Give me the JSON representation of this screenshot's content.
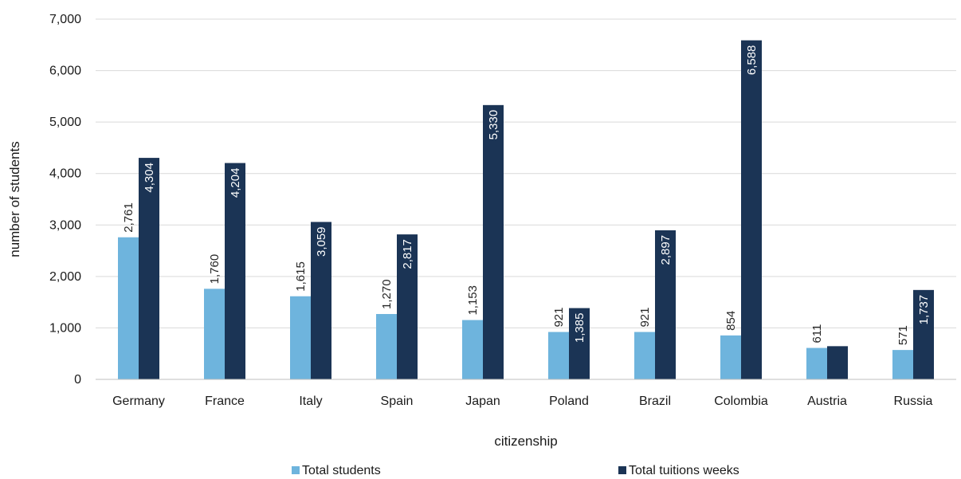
{
  "chart_data": {
    "type": "bar",
    "title": "",
    "xlabel": "citizenship",
    "ylabel": "number of students",
    "categories": [
      "Germany",
      "France",
      "Italy",
      "Spain",
      "Japan",
      "Poland",
      "Brazil",
      "Colombia",
      "Austria",
      "Russia"
    ],
    "series": [
      {
        "name": "Total students",
        "color": "#6eb4dd",
        "values": [
          2761,
          1760,
          1615,
          1270,
          1153,
          921,
          921,
          854,
          611,
          571
        ],
        "labels": [
          "2,761",
          "1,760",
          "1,615",
          "1,270",
          "1,153",
          "921",
          "921",
          "854",
          "611",
          "571"
        ]
      },
      {
        "name": "Total tuitions weeks",
        "color": "#1b3455",
        "values": [
          4304,
          4204,
          3059,
          2817,
          5330,
          1385,
          2897,
          6588,
          645,
          1737
        ],
        "labels": [
          "4,304",
          "4,204",
          "3,059",
          "2,817",
          "5,330",
          "1,385",
          "2,897",
          "6,588",
          "",
          "1,737"
        ]
      }
    ],
    "ylim": [
      0,
      7000
    ],
    "yticks": [
      "0",
      "1,000",
      "2,000",
      "3,000",
      "4,000",
      "5,000",
      "6,000",
      "7,000"
    ],
    "grid": true,
    "legend": "bottom"
  }
}
